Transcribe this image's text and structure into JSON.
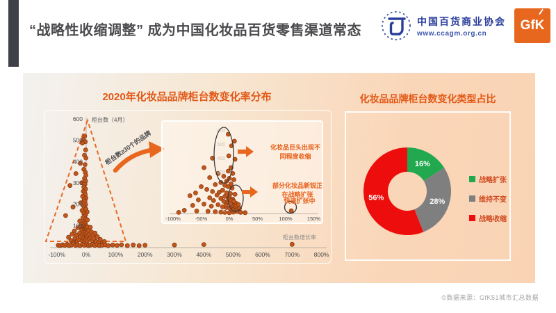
{
  "slide": {
    "title": "“战略性收缩调整” 成为中国化妆品百货零售渠道常态",
    "footer": "©数据来源：GfK51城市汇总数据"
  },
  "logos": {
    "association_name": "中国百货商业协会",
    "association_url": "www.ccagm.org.cn",
    "gfk": "GfK"
  },
  "colors": {
    "accent_orange": "#e25817",
    "dot_fill": "#c2571e",
    "dot_stroke": "#87390e",
    "dashed_orange": "#e96a24",
    "green": "#22a84e",
    "gray": "#7f7f7f",
    "red": "#ee0d0d",
    "assoc_blue": "#2b3e9b",
    "gfk_orange": "#e8671e"
  },
  "chart_data": [
    {
      "type": "scatter",
      "title": "2020年化妆品品牌柜台数变化率分布",
      "xlabel": "柜台数增长率",
      "ylabel": "柜台数（4月）",
      "callout": "柜台数≥30个的品牌",
      "xlim": [
        -100,
        800
      ],
      "ylim": [
        0,
        600
      ],
      "x_tick_values": [
        -100,
        0,
        100,
        200,
        300,
        400,
        500,
        600,
        700,
        800
      ],
      "y_tick_values": [
        600,
        500,
        400,
        300,
        200,
        100
      ],
      "points": [
        [
          -5,
          520
        ],
        [
          -10,
          503
        ],
        [
          -3,
          493
        ],
        [
          -13,
          487
        ],
        [
          -2,
          455
        ],
        [
          -6,
          430
        ],
        [
          -1,
          417
        ],
        [
          -20,
          392
        ],
        [
          -4,
          386
        ],
        [
          -8,
          364
        ],
        [
          -3,
          350
        ],
        [
          -35,
          344
        ],
        [
          -1,
          336
        ],
        [
          -6,
          321
        ],
        [
          -2,
          309
        ],
        [
          -15,
          301
        ],
        [
          -4,
          294
        ],
        [
          -55,
          288
        ],
        [
          -8,
          281
        ],
        [
          -2,
          271
        ],
        [
          -10,
          261
        ],
        [
          -5,
          254
        ],
        [
          -3,
          245
        ],
        [
          -12,
          237
        ],
        [
          -1,
          229
        ],
        [
          -7,
          221
        ],
        [
          -4,
          214
        ],
        [
          -18,
          207
        ],
        [
          -2,
          199
        ],
        [
          -9,
          192
        ],
        [
          -45,
          187
        ],
        [
          -5,
          184
        ],
        [
          -1,
          177
        ],
        [
          -14,
          171
        ],
        [
          3,
          164
        ],
        [
          -8,
          157
        ],
        [
          -2,
          151
        ],
        [
          -70,
          147
        ],
        [
          -6,
          143
        ],
        [
          -11,
          137
        ],
        [
          -1,
          131
        ],
        [
          4,
          127
        ],
        [
          -22,
          121
        ],
        [
          -8,
          117
        ],
        [
          -3,
          111
        ],
        [
          -16,
          107
        ],
        [
          -6,
          103
        ],
        [
          -1,
          99
        ],
        [
          -60,
          45
        ],
        [
          -52,
          30
        ],
        [
          -48,
          60
        ],
        [
          -44,
          22
        ],
        [
          -40,
          75
        ],
        [
          -38,
          40
        ],
        [
          -33,
          55
        ],
        [
          -30,
          28
        ],
        [
          -28,
          90
        ],
        [
          -25,
          35
        ],
        [
          -22,
          65
        ],
        [
          -20,
          48
        ],
        [
          -18,
          95
        ],
        [
          -15,
          80
        ],
        [
          -14,
          30
        ],
        [
          -12,
          58
        ],
        [
          -10,
          93
        ],
        [
          -10,
          42
        ],
        [
          -8,
          70
        ],
        [
          -7,
          25
        ],
        [
          -6,
          88
        ],
        [
          -5,
          85
        ],
        [
          -5,
          50
        ],
        [
          -4,
          96
        ],
        [
          -3,
          62
        ],
        [
          -2,
          91
        ],
        [
          -2,
          35
        ],
        [
          -1,
          75
        ],
        [
          0,
          55
        ],
        [
          0,
          84
        ],
        [
          1,
          90
        ],
        [
          2,
          45
        ],
        [
          3,
          68
        ],
        [
          4,
          28
        ],
        [
          5,
          94
        ],
        [
          6,
          52
        ],
        [
          8,
          78
        ],
        [
          10,
          38
        ],
        [
          12,
          60
        ],
        [
          14,
          92
        ],
        [
          16,
          44
        ],
        [
          18,
          70
        ],
        [
          20,
          30
        ],
        [
          23,
          55
        ],
        [
          26,
          40
        ],
        [
          30,
          65
        ],
        [
          34,
          25
        ],
        [
          38,
          48
        ],
        [
          42,
          20
        ],
        [
          48,
          35
        ],
        [
          55,
          18
        ],
        [
          62,
          25
        ],
        [
          -95,
          8
        ],
        [
          -88,
          6
        ],
        [
          -80,
          10
        ],
        [
          -73,
          7
        ],
        [
          -65,
          12
        ],
        [
          -58,
          6
        ],
        [
          -50,
          9
        ],
        [
          -42,
          14
        ],
        [
          -36,
          7
        ],
        [
          -29,
          10
        ],
        [
          -21,
          6
        ],
        [
          -13,
          12
        ],
        [
          -6,
          8
        ],
        [
          2,
          10
        ],
        [
          8,
          6
        ],
        [
          15,
          9
        ],
        [
          22,
          12
        ],
        [
          29,
          7
        ],
        [
          37,
          10
        ],
        [
          45,
          6
        ],
        [
          54,
          8
        ],
        [
          64,
          10
        ],
        [
          75,
          6
        ],
        [
          90,
          9
        ],
        [
          105,
          7
        ],
        [
          120,
          10
        ],
        [
          140,
          6
        ],
        [
          160,
          9
        ],
        [
          180,
          6
        ],
        [
          200,
          8
        ],
        [
          300,
          9
        ],
        [
          400,
          11
        ],
        [
          700,
          12
        ]
      ]
    },
    {
      "type": "scatter",
      "name": "inset-detail",
      "xlim": [
        -100,
        150
      ],
      "ylim": [
        0,
        600
      ],
      "x_tick_values": [
        -100,
        -50,
        0,
        50,
        100,
        150
      ],
      "y_faint_values": [
        600,
        500,
        400,
        300,
        0
      ],
      "annotations": {
        "giants": {
          "line1": "化妆品巨头出现不",
          "line2": "同程度收缩"
        },
        "rookies": {
          "line1": "部分化妆品新锐正",
          "line2": "在战略扩张"
        },
        "fast": "快速扩张中"
      },
      "points": [
        [
          -2,
          570
        ],
        [
          9,
          520
        ],
        [
          4,
          487
        ],
        [
          -1,
          415
        ],
        [
          10,
          390
        ],
        [
          3,
          330
        ],
        [
          -2,
          305
        ],
        [
          6,
          288
        ],
        [
          -30,
          398
        ],
        [
          -45,
          330
        ],
        [
          -20,
          288
        ],
        [
          -35,
          258
        ],
        [
          -10,
          268
        ],
        [
          0,
          253
        ],
        [
          8,
          243
        ],
        [
          -5,
          233
        ],
        [
          -15,
          223
        ],
        [
          3,
          213
        ],
        [
          -25,
          208
        ],
        [
          -50,
          193
        ],
        [
          -8,
          203
        ],
        [
          -2,
          193
        ],
        [
          5,
          183
        ],
        [
          -40,
          173
        ],
        [
          -12,
          168
        ],
        [
          -30,
          158
        ],
        [
          -60,
          148
        ],
        [
          -18,
          153
        ],
        [
          -5,
          148
        ],
        [
          2,
          143
        ],
        [
          10,
          138
        ],
        [
          -70,
          128
        ],
        [
          -22,
          133
        ],
        [
          -8,
          123
        ],
        [
          0,
          118
        ],
        [
          -35,
          113
        ],
        [
          -15,
          108
        ],
        [
          6,
          103
        ],
        [
          -55,
          98
        ],
        [
          -28,
          93
        ],
        [
          -10,
          88
        ],
        [
          -3,
          83
        ],
        [
          4,
          78
        ],
        [
          12,
          73
        ],
        [
          -45,
          68
        ],
        [
          -20,
          63
        ],
        [
          -65,
          58
        ],
        [
          -32,
          53
        ],
        [
          -12,
          48
        ],
        [
          -5,
          43
        ],
        [
          1,
          38
        ],
        [
          8,
          33
        ],
        [
          15,
          28
        ],
        [
          -80,
          23
        ],
        [
          -58,
          18
        ],
        [
          -38,
          16
        ],
        [
          -25,
          13
        ],
        [
          -15,
          10
        ],
        [
          -8,
          8
        ],
        [
          0,
          6
        ],
        [
          7,
          10
        ],
        [
          14,
          16
        ],
        [
          20,
          8
        ],
        [
          28,
          6
        ],
        [
          -90,
          8
        ],
        [
          110,
          20
        ],
        [
          5,
          60
        ],
        [
          10,
          50
        ],
        [
          3,
          95
        ],
        [
          -2,
          108
        ],
        [
          8,
          88
        ],
        [
          14,
          42
        ],
        [
          6,
          25
        ],
        [
          12,
          55
        ],
        [
          2,
          70
        ],
        [
          -6,
          60
        ],
        [
          16,
          65
        ],
        [
          18,
          38
        ]
      ]
    },
    {
      "type": "pie",
      "title": "化妆品品牌柜台数变化类型占比",
      "labels": [
        "战略扩张",
        "维持不变",
        "战略收缩"
      ],
      "values": [
        16,
        28,
        56
      ],
      "colors": [
        "#22a84e",
        "#7f7f7f",
        "#ee0d0d"
      ],
      "legend_position": "right",
      "donut": true
    }
  ]
}
